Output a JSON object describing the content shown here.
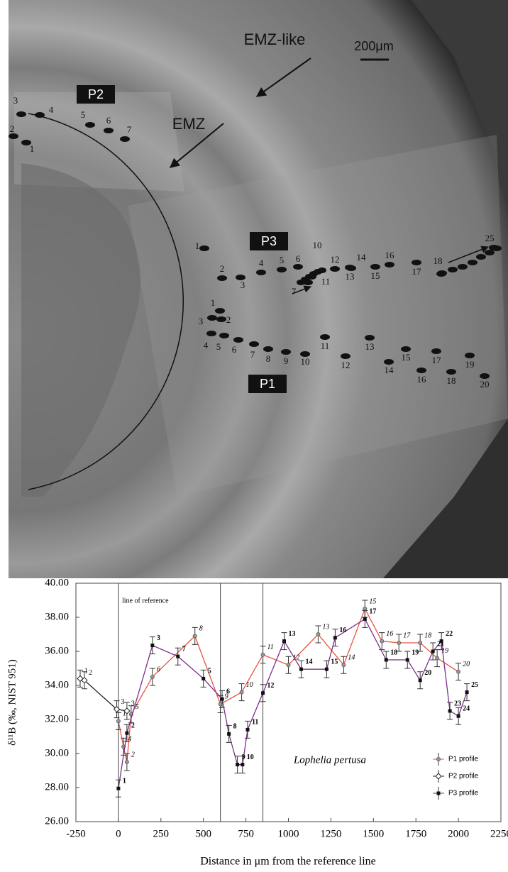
{
  "micrograph": {
    "labels": {
      "emz_like": "EMZ-like",
      "scale": "200μm",
      "p2": "P2",
      "emz": "EMZ",
      "p3": "P3",
      "p1": "P1"
    },
    "p1_spots": [
      "1",
      "2",
      "3",
      "4",
      "5",
      "6",
      "7",
      "8",
      "9",
      "10",
      "11",
      "12",
      "13",
      "14",
      "15",
      "16",
      "17",
      "18",
      "19",
      "20"
    ],
    "p2_spots": [
      "1",
      "2",
      "3",
      "4",
      "5",
      "6",
      "7"
    ],
    "p3_spots": [
      "1",
      "2",
      "3",
      "4",
      "5",
      "6",
      "7",
      "10",
      "11",
      "12",
      "13",
      "14",
      "15",
      "16",
      "17",
      "18",
      "25"
    ]
  },
  "chart_data": {
    "type": "line",
    "y_label": "δ¹¹B (‰, NIST 951)",
    "x_label": "Distance in μm from the reference line",
    "annotation": "Lophelia pertusa",
    "reference_label": "line of reference",
    "vlines": [
      0,
      600,
      850
    ],
    "xlim": [
      -250,
      2250
    ],
    "xticks": [
      -250,
      0,
      250,
      500,
      750,
      1000,
      1250,
      1500,
      1750,
      2000,
      2250
    ],
    "ylim": [
      26,
      40
    ],
    "yticks": [
      {
        "value": 26,
        "label": "26.00"
      },
      {
        "value": 28,
        "label": "28.00"
      },
      {
        "value": 30,
        "label": "30.00"
      },
      {
        "value": 32,
        "label": "32.00"
      },
      {
        "value": 34,
        "label": "34.00"
      },
      {
        "value": 36,
        "label": "36.00"
      },
      {
        "value": 38,
        "label": "38.00"
      },
      {
        "value": 40,
        "label": "40.00"
      }
    ],
    "legend": "lower right",
    "series": [
      {
        "name": "P1 profile",
        "color": "#e8553f",
        "marker": "circle",
        "x": [
          0,
          30,
          50,
          75,
          200,
          450,
          600,
          725,
          850,
          1000,
          1175,
          1325,
          1450,
          1550,
          1650,
          1775,
          1875,
          2000
        ],
        "values": [
          31.9,
          30.4,
          29.5,
          32.3,
          34.5,
          36.9,
          32.9,
          33.6,
          35.8,
          35.2,
          37.0,
          35.2,
          38.5,
          36.6,
          36.5,
          36.5,
          35.6,
          34.8
        ],
        "errors": [
          0.5,
          0.5,
          0.5,
          0.5,
          0.5,
          0.5,
          0.5,
          0.5,
          0.5,
          0.5,
          0.5,
          0.5,
          0.5,
          0.5,
          0.5,
          0.5,
          0.5,
          0.5
        ],
        "point_labels": [
          "1",
          "4",
          "2",
          "5",
          "6",
          "8",
          "9",
          "10",
          "11",
          "12",
          "13",
          "14",
          "15",
          "16",
          "17",
          "18",
          "19",
          "20"
        ]
      },
      {
        "name": "P2 profile",
        "color": "#222222",
        "marker": "diamond",
        "x": [
          -225,
          -200,
          -10,
          50
        ],
        "values": [
          34.4,
          34.3,
          32.6,
          32.5
        ],
        "errors": [
          0.5,
          0.5,
          0.5,
          0.5
        ],
        "point_labels": [
          "1",
          "2",
          "3",
          "3"
        ]
      },
      {
        "name": "P3 profile",
        "color": "#7b2f8a",
        "marker": "square",
        "x": [
          0,
          50,
          200,
          350,
          500,
          610,
          650,
          700,
          730,
          760,
          850,
          975,
          1075,
          1225,
          1275,
          1450,
          1575,
          1700,
          1775,
          1850,
          1900,
          1950,
          2000,
          2050
        ],
        "values": [
          27.95,
          31.2,
          36.35,
          35.7,
          34.4,
          33.2,
          31.15,
          29.35,
          29.35,
          31.4,
          33.55,
          36.6,
          34.95,
          34.95,
          36.8,
          37.9,
          35.5,
          35.5,
          34.3,
          36.0,
          36.6,
          32.5,
          32.2,
          33.6
        ],
        "errors": [
          0.5,
          0.5,
          0.5,
          0.5,
          0.5,
          0.5,
          0.5,
          0.5,
          0.5,
          0.5,
          0.5,
          0.5,
          0.5,
          0.5,
          0.5,
          0.5,
          0.5,
          0.5,
          0.5,
          0.5,
          0.5,
          0.5,
          0.5,
          0.5
        ],
        "point_labels": [
          "1",
          "2",
          "3",
          "7",
          "5",
          "6",
          "8",
          "9",
          "10",
          "11",
          "12",
          "13",
          "14",
          "15",
          "16",
          "17",
          "18",
          "19",
          "20",
          "21",
          "22",
          "23",
          "24",
          "25"
        ]
      }
    ]
  }
}
